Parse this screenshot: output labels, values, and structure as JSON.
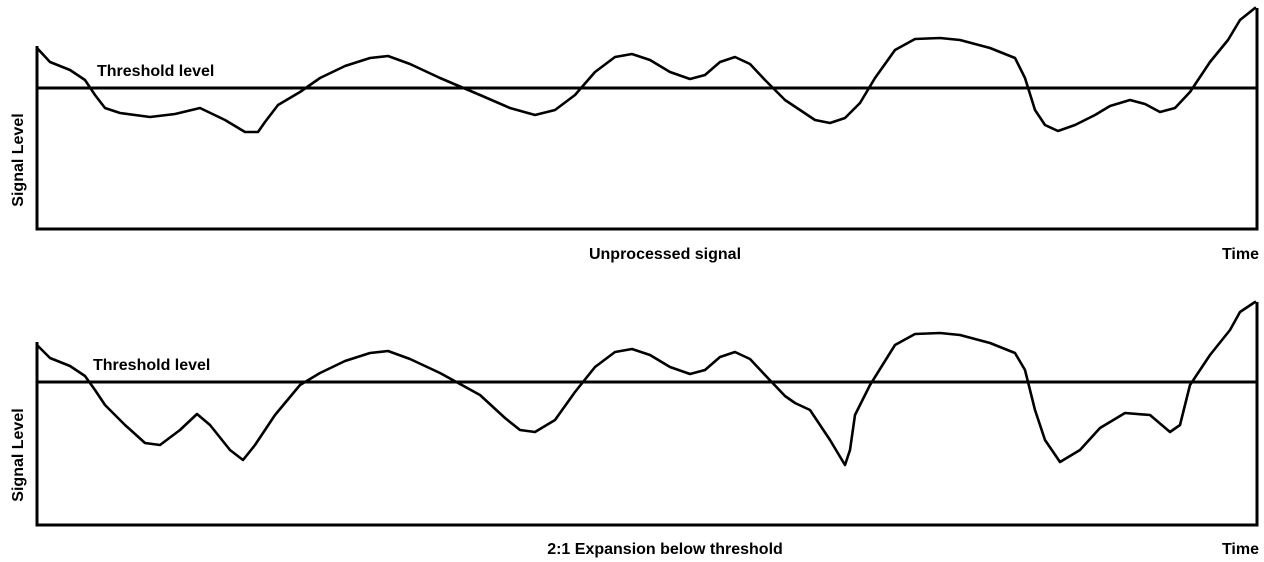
{
  "panels": [
    {
      "axis_label": "Signal Level",
      "threshold_label": "Threshold level",
      "caption": "Unprocessed signal",
      "time_label": "Time"
    },
    {
      "axis_label": "Signal Level",
      "threshold_label": "Threshold level",
      "caption": "2:1 Expansion below threshold",
      "time_label": "Time"
    }
  ]
}
